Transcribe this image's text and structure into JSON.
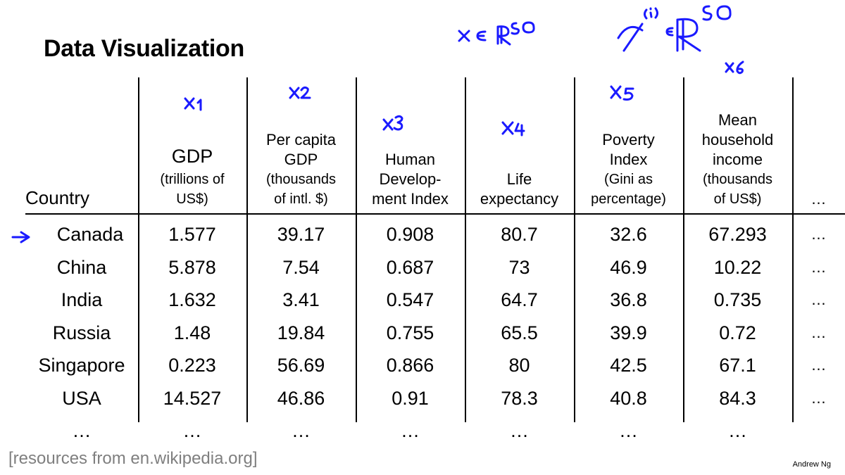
{
  "slide": {
    "title": "Data Visualization",
    "source": "[resources from en.wikipedia.org]",
    "author": "Andrew Ng"
  },
  "annotation_color": "#1a1aff",
  "headers": {
    "country": "Country",
    "gdp": [
      "GDP",
      "(trillions of",
      "US$)"
    ],
    "per_capita": [
      "Per capita",
      "GDP",
      "(thousands",
      "of intl. $)"
    ],
    "hdi": [
      "Human",
      "Develop-",
      "ment Index"
    ],
    "life": [
      "Life",
      "expectancy"
    ],
    "poverty": [
      "Poverty",
      "Index",
      "(Gini as",
      "percentage)"
    ],
    "income": [
      "Mean",
      "household",
      "income",
      "(thousands",
      "of US$)"
    ],
    "more": "…"
  },
  "rows": [
    [
      "Canada",
      "1.577",
      "39.17",
      "0.908",
      "80.7",
      "32.6",
      "67.293",
      "…"
    ],
    [
      "China",
      "5.878",
      "7.54",
      "0.687",
      "73",
      "46.9",
      "10.22",
      "…"
    ],
    [
      "India",
      "1.632",
      "3.41",
      "0.547",
      "64.7",
      "36.8",
      "0.735",
      "…"
    ],
    [
      "Russia",
      "1.48",
      "19.84",
      "0.755",
      "65.5",
      "39.9",
      "0.72",
      "…"
    ],
    [
      "Singapore",
      "0.223",
      "56.69",
      "0.866",
      "80",
      "42.5",
      "67.1",
      "…"
    ],
    [
      "USA",
      "14.527",
      "46.86",
      "0.91",
      "78.3",
      "40.8",
      "84.3",
      "…"
    ],
    [
      "…",
      "…",
      "…",
      "…",
      "…",
      "…",
      "…",
      ""
    ]
  ],
  "handwriting": [
    "x ∈ ℝ^50",
    "x^(i) ∈ ℝ^50",
    "x1",
    "x2",
    "x3",
    "x4",
    "x5",
    "x6",
    "→"
  ]
}
